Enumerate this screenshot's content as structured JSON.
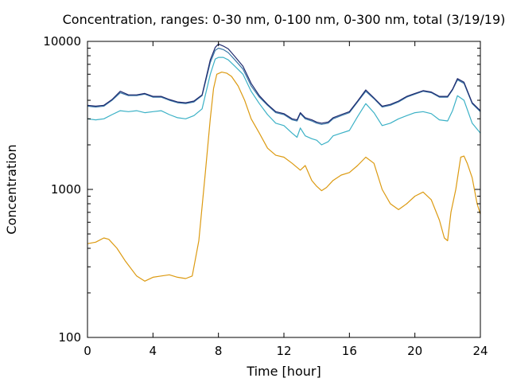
{
  "chart_data": {
    "type": "line",
    "title": "Concentration, ranges: 0-30 nm, 0-100 nm, 0-300 nm, total (3/19/19)",
    "xlabel": "Time [hour]",
    "ylabel": "Concentration",
    "xlim": [
      0,
      24
    ],
    "ylim": [
      100,
      10000
    ],
    "yscale": "log",
    "grid": false,
    "x_ticks": [
      "0",
      "4",
      "8",
      "12",
      "16",
      "20",
      "24"
    ],
    "y_ticks": [
      "100",
      "1000",
      "10000"
    ],
    "x_tick_values": [
      0,
      4,
      8,
      12,
      16,
      20,
      24
    ],
    "y_tick_values": [
      100,
      1000,
      10000
    ],
    "series": [
      {
        "color": "#dc9a11",
        "x": [
          0.0,
          0.5,
          1.0,
          1.3,
          1.8,
          2.3,
          3.0,
          3.5,
          4.0,
          4.5,
          5.0,
          5.5,
          6.0,
          6.4,
          6.8,
          7.2,
          7.5,
          7.7,
          7.9,
          8.2,
          8.5,
          8.8,
          9.2,
          9.6,
          10.0,
          10.5,
          11.0,
          11.5,
          12.0,
          12.5,
          13.0,
          13.3,
          13.7,
          14.0,
          14.3,
          14.6,
          15.0,
          15.5,
          16.0,
          16.5,
          17.0,
          17.5,
          18.0,
          18.5,
          19.0,
          19.5,
          20.0,
          20.5,
          21.0,
          21.5,
          21.8,
          22.0,
          22.2,
          22.5,
          22.8,
          23.0,
          23.2,
          23.5,
          23.8,
          24.0
        ],
        "y": [
          430,
          440,
          470,
          460,
          400,
          330,
          260,
          240,
          255,
          260,
          265,
          255,
          250,
          260,
          450,
          1300,
          3000,
          4800,
          6000,
          6200,
          6100,
          5800,
          5000,
          4000,
          3000,
          2400,
          1900,
          1700,
          1650,
          1500,
          1350,
          1450,
          1150,
          1050,
          980,
          1030,
          1150,
          1250,
          1300,
          1450,
          1650,
          1500,
          1000,
          800,
          730,
          800,
          900,
          960,
          850,
          620,
          470,
          450,
          700,
          1000,
          1650,
          1680,
          1500,
          1200,
          800,
          680
        ]
      },
      {
        "color": "#3bb1c6",
        "x": [
          0.0,
          0.5,
          1.0,
          1.5,
          2.0,
          2.5,
          3.0,
          3.5,
          4.0,
          4.5,
          5.0,
          5.5,
          6.0,
          6.5,
          7.0,
          7.5,
          7.8,
          8.0,
          8.3,
          8.6,
          9.0,
          9.5,
          10.0,
          10.5,
          11.0,
          11.5,
          12.0,
          12.5,
          12.8,
          13.0,
          13.3,
          13.7,
          14.0,
          14.3,
          14.7,
          15.0,
          15.5,
          16.0,
          16.5,
          17.0,
          17.5,
          18.0,
          18.5,
          19.0,
          19.5,
          20.0,
          20.5,
          21.0,
          21.5,
          22.0,
          22.3,
          22.6,
          23.0,
          23.5,
          24.0
        ],
        "y": [
          3000,
          2950,
          3000,
          3200,
          3400,
          3350,
          3400,
          3300,
          3350,
          3400,
          3200,
          3050,
          3000,
          3150,
          3500,
          6000,
          7600,
          7800,
          7800,
          7500,
          6800,
          6000,
          4600,
          3800,
          3200,
          2800,
          2700,
          2400,
          2250,
          2600,
          2300,
          2200,
          2150,
          2000,
          2100,
          2300,
          2400,
          2500,
          3100,
          3800,
          3300,
          2700,
          2800,
          3000,
          3150,
          3300,
          3350,
          3250,
          2950,
          2900,
          3400,
          4300,
          4000,
          2800,
          2400
        ]
      },
      {
        "color": "#3a78a8",
        "x": [
          0.0,
          0.5,
          1.0,
          1.5,
          2.0,
          2.5,
          3.0,
          3.5,
          4.0,
          4.5,
          5.0,
          5.5,
          6.0,
          6.5,
          7.0,
          7.5,
          7.8,
          8.0,
          8.3,
          8.6,
          9.0,
          9.5,
          10.0,
          10.5,
          11.0,
          11.5,
          12.0,
          12.5,
          12.8,
          13.0,
          13.3,
          13.7,
          14.0,
          14.3,
          14.7,
          15.0,
          15.5,
          16.0,
          16.5,
          17.0,
          17.5,
          18.0,
          18.5,
          19.0,
          19.5,
          20.0,
          20.5,
          21.0,
          21.5,
          22.0,
          22.3,
          22.6,
          23.0,
          23.5,
          24.0
        ],
        "y": [
          3650,
          3600,
          3650,
          4000,
          4500,
          4300,
          4300,
          4400,
          4200,
          4200,
          4000,
          3850,
          3800,
          3900,
          4300,
          7200,
          8700,
          9000,
          8800,
          8400,
          7500,
          6500,
          5000,
          4200,
          3700,
          3300,
          3200,
          2950,
          2900,
          3250,
          3000,
          2900,
          2800,
          2750,
          2800,
          3000,
          3150,
          3300,
          3900,
          4600,
          4100,
          3600,
          3700,
          3900,
          4200,
          4400,
          4600,
          4500,
          4200,
          4200,
          4700,
          5500,
          5200,
          3800,
          3350
        ]
      },
      {
        "color": "#1f2a6e",
        "x": [
          0.0,
          0.5,
          1.0,
          1.5,
          2.0,
          2.5,
          3.0,
          3.5,
          4.0,
          4.5,
          5.0,
          5.5,
          6.0,
          6.5,
          7.0,
          7.5,
          7.8,
          8.0,
          8.3,
          8.6,
          9.0,
          9.5,
          10.0,
          10.5,
          11.0,
          11.5,
          12.0,
          12.5,
          12.8,
          13.0,
          13.3,
          13.7,
          14.0,
          14.3,
          14.7,
          15.0,
          15.5,
          16.0,
          16.5,
          17.0,
          17.5,
          18.0,
          18.5,
          19.0,
          19.5,
          20.0,
          20.5,
          21.0,
          21.5,
          22.0,
          22.3,
          22.6,
          23.0,
          23.5,
          24.0
        ],
        "y": [
          3700,
          3650,
          3700,
          4050,
          4600,
          4350,
          4350,
          4450,
          4250,
          4250,
          4050,
          3900,
          3850,
          3950,
          4350,
          7500,
          9100,
          9600,
          9300,
          8900,
          7900,
          6800,
          5200,
          4300,
          3750,
          3350,
          3250,
          3000,
          2950,
          3300,
          3050,
          2950,
          2850,
          2800,
          2850,
          3050,
          3200,
          3350,
          3950,
          4700,
          4150,
          3650,
          3750,
          3950,
          4250,
          4450,
          4650,
          4550,
          4250,
          4250,
          4750,
          5600,
          5300,
          3850,
          3400
        ]
      }
    ]
  }
}
